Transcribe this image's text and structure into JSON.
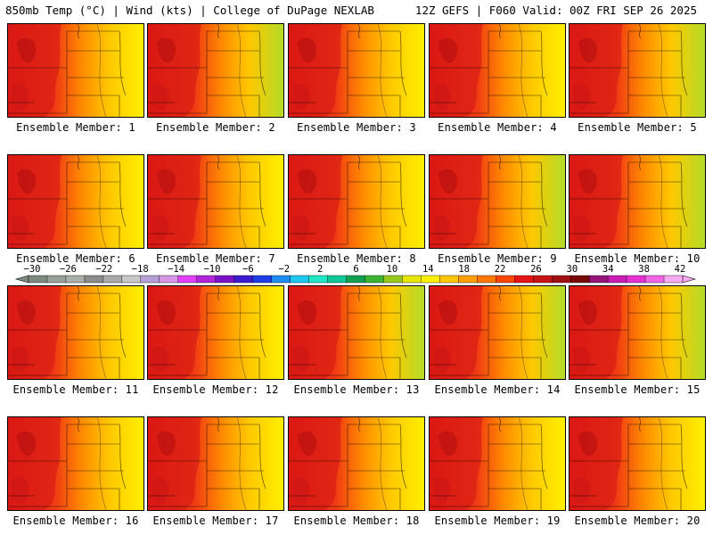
{
  "header": {
    "title_left": "850mb Temp (°C) | Wind (kts) | College of DuPage NEXLAB",
    "title_right": "12Z GEFS | F060 Valid: 00Z FRI SEP 26 2025"
  },
  "members": [
    {
      "label": "Ensemble Member: 1"
    },
    {
      "label": "Ensemble Member: 2"
    },
    {
      "label": "Ensemble Member: 3"
    },
    {
      "label": "Ensemble Member: 4"
    },
    {
      "label": "Ensemble Member: 5"
    },
    {
      "label": "Ensemble Member: 6"
    },
    {
      "label": "Ensemble Member: 7"
    },
    {
      "label": "Ensemble Member: 8"
    },
    {
      "label": "Ensemble Member: 9"
    },
    {
      "label": "Ensemble Member: 10"
    },
    {
      "label": "Ensemble Member: 11"
    },
    {
      "label": "Ensemble Member: 12"
    },
    {
      "label": "Ensemble Member: 13"
    },
    {
      "label": "Ensemble Member: 14"
    },
    {
      "label": "Ensemble Member: 15"
    },
    {
      "label": "Ensemble Member: 16"
    },
    {
      "label": "Ensemble Member: 17"
    },
    {
      "label": "Ensemble Member: 18"
    },
    {
      "label": "Ensemble Member: 19"
    },
    {
      "label": "Ensemble Member: 20"
    }
  ],
  "colorbar": {
    "labels": [
      "−30",
      "−26",
      "−22",
      "−18",
      "−14",
      "−10",
      "−6",
      "−2",
      "2",
      "6",
      "10",
      "14",
      "18",
      "22",
      "26",
      "30",
      "34",
      "38",
      "42"
    ],
    "colors": [
      "#7d8a7d",
      "#96a096",
      "#a9b0a9",
      "#8c8c8c",
      "#aaaaaa",
      "#c8c8c8",
      "#b5a0d6",
      "#d896e6",
      "#e040fb",
      "#b026d8",
      "#7a12c8",
      "#3c1ad0",
      "#1e3ce6",
      "#1e8cf0",
      "#1ec8f0",
      "#20e6c8",
      "#10c896",
      "#10a050",
      "#3cb432",
      "#96c81e",
      "#e6e600",
      "#fff000",
      "#ffc800",
      "#ffa000",
      "#ff7800",
      "#ff4600",
      "#e61414",
      "#c81414",
      "#a01010",
      "#780a0a",
      "#961478",
      "#c81eb4",
      "#e632d2",
      "#f064e6",
      "#f8aaf0"
    ]
  }
}
